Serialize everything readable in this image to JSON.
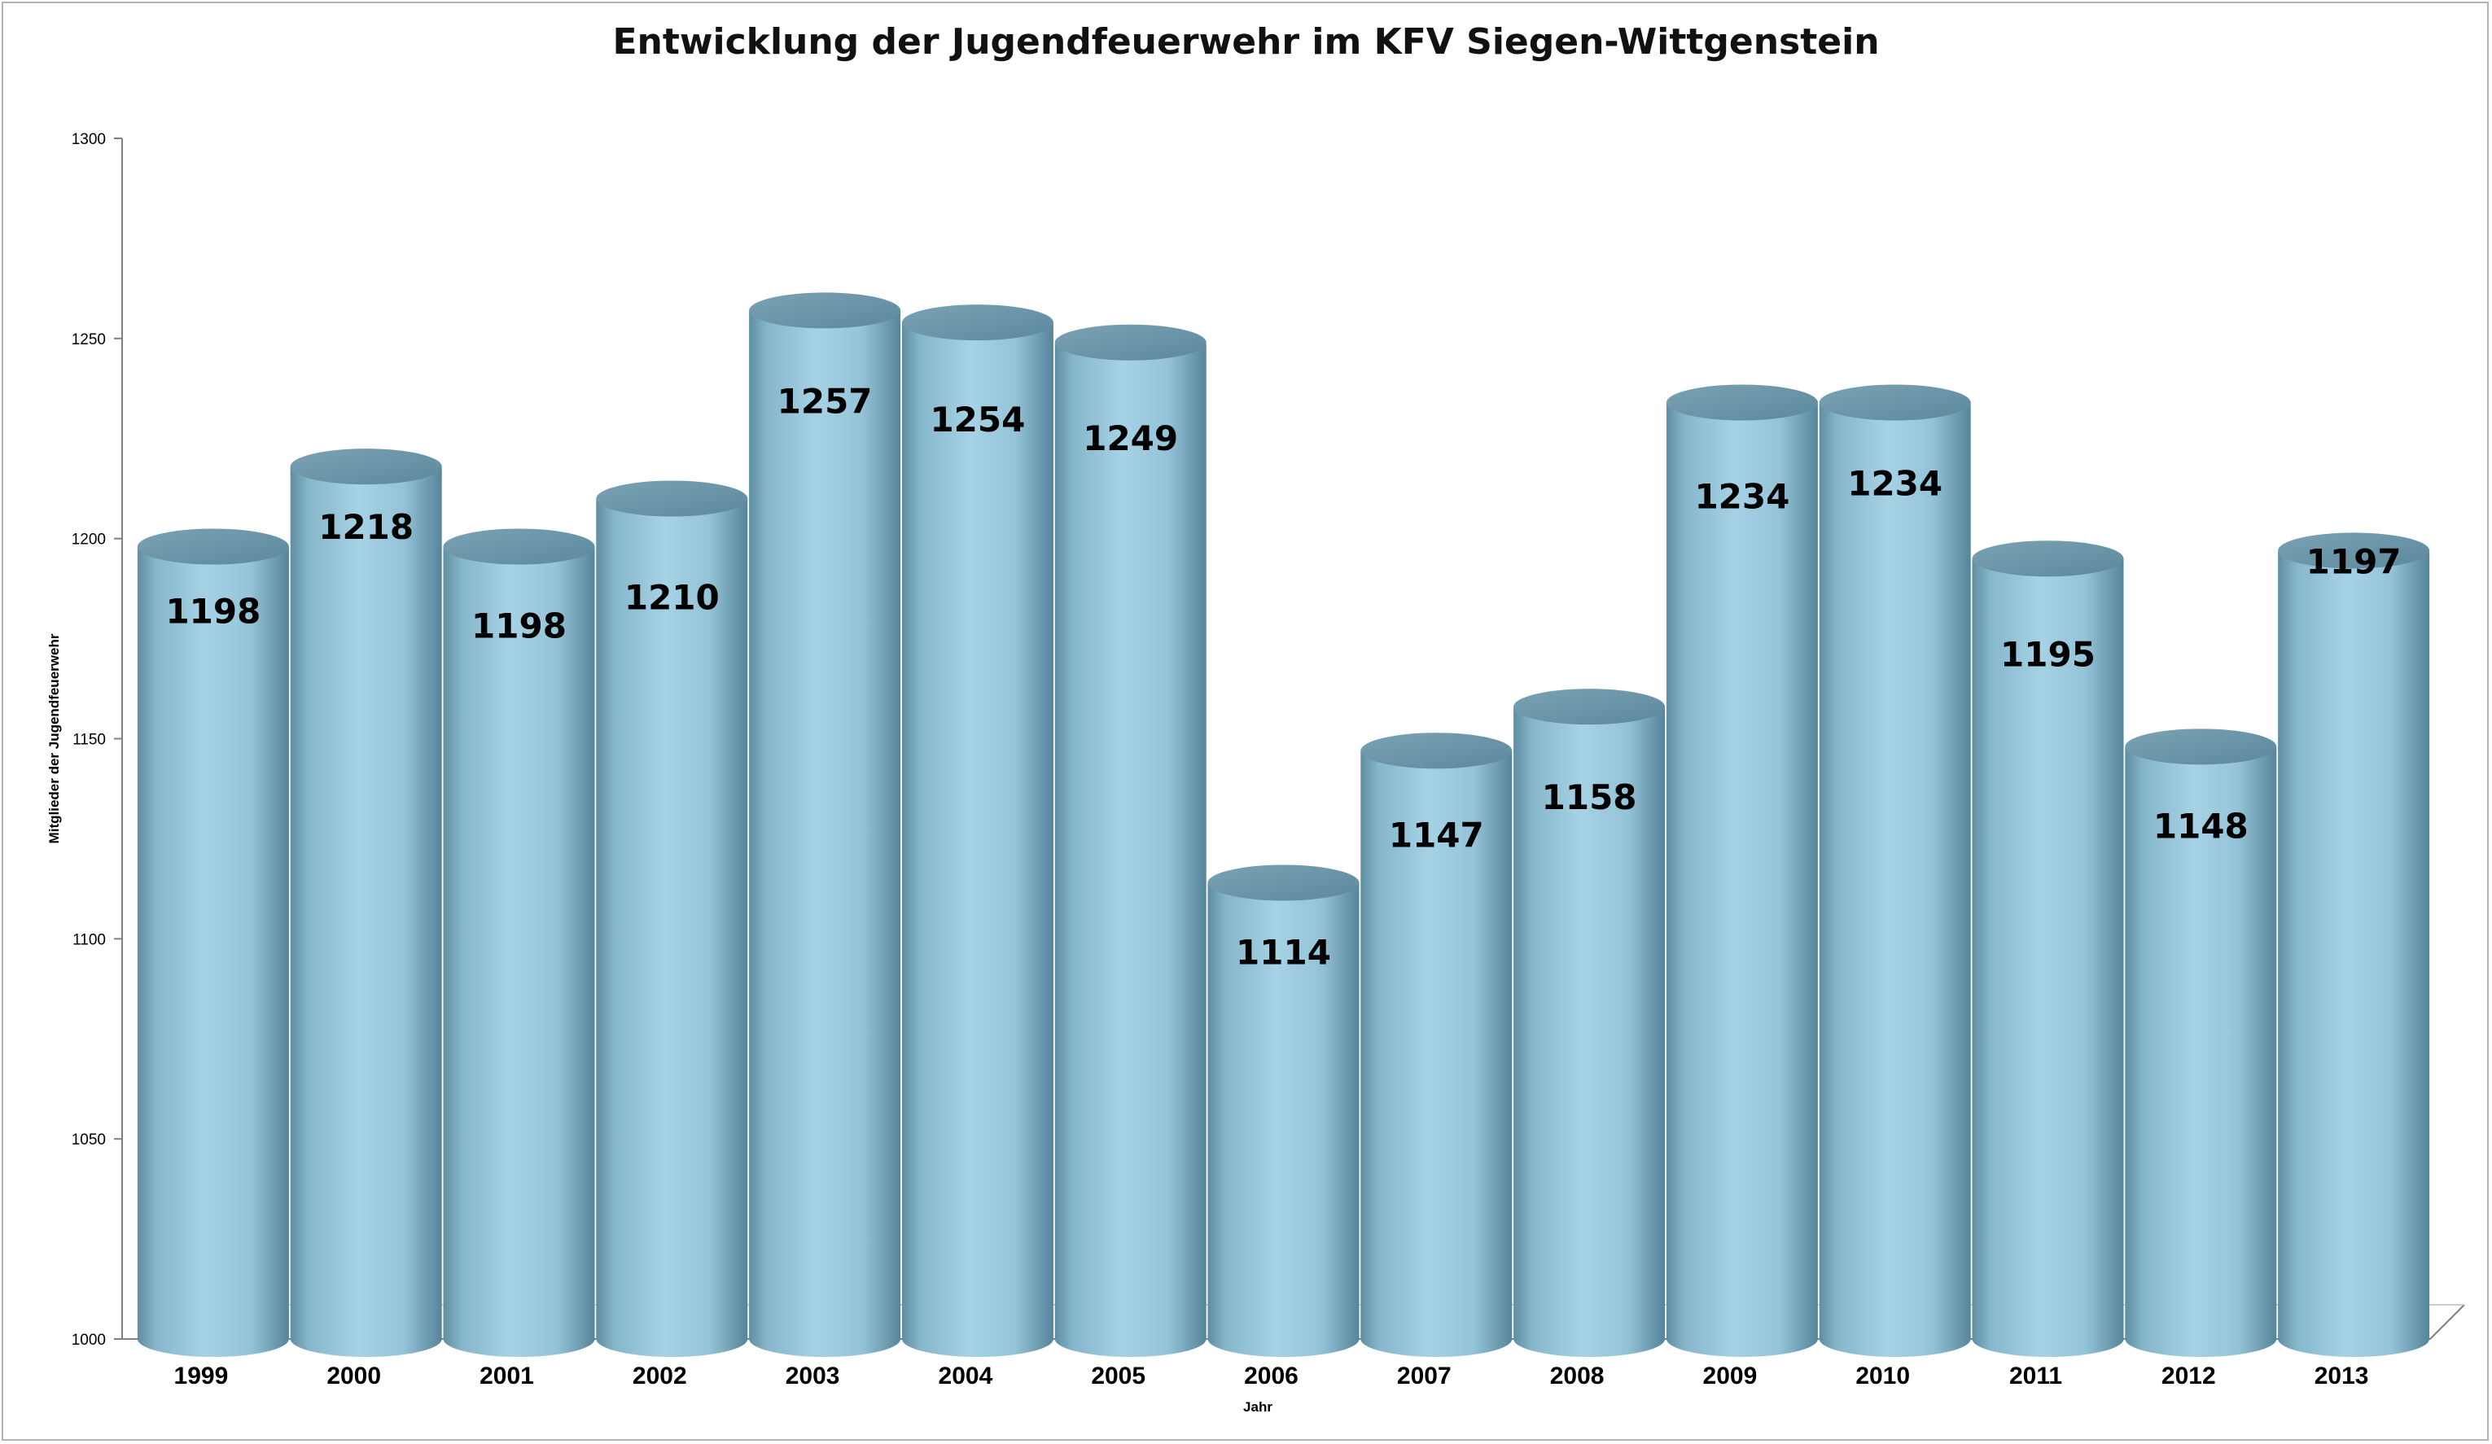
{
  "chart_data": {
    "type": "bar",
    "style": "3d-cylinder",
    "title": "Entwicklung der Jugendfeuerwehr im KFV Siegen-Wittgenstein",
    "xlabel": "Jahr",
    "ylabel": "Mitglieder der Jugendfeuerwehr",
    "categories": [
      "1999",
      "2000",
      "2001",
      "2002",
      "2003",
      "2004",
      "2005",
      "2006",
      "2007",
      "2008",
      "2009",
      "2010",
      "2011",
      "2012",
      "2013"
    ],
    "values": [
      1198,
      1218,
      1198,
      1210,
      1257,
      1254,
      1249,
      1114,
      1147,
      1158,
      1234,
      1234,
      1195,
      1148,
      1197
    ],
    "ylim": [
      1000,
      1300
    ],
    "yticks": [
      1000,
      1050,
      1100,
      1150,
      1200,
      1250,
      1300
    ],
    "data_labels": true,
    "grid": false,
    "legend": "none",
    "colors": {
      "bar_body": "#9cc9dd",
      "bar_edge": "#5f8ea3",
      "bar_top": "#6e98ab"
    }
  }
}
